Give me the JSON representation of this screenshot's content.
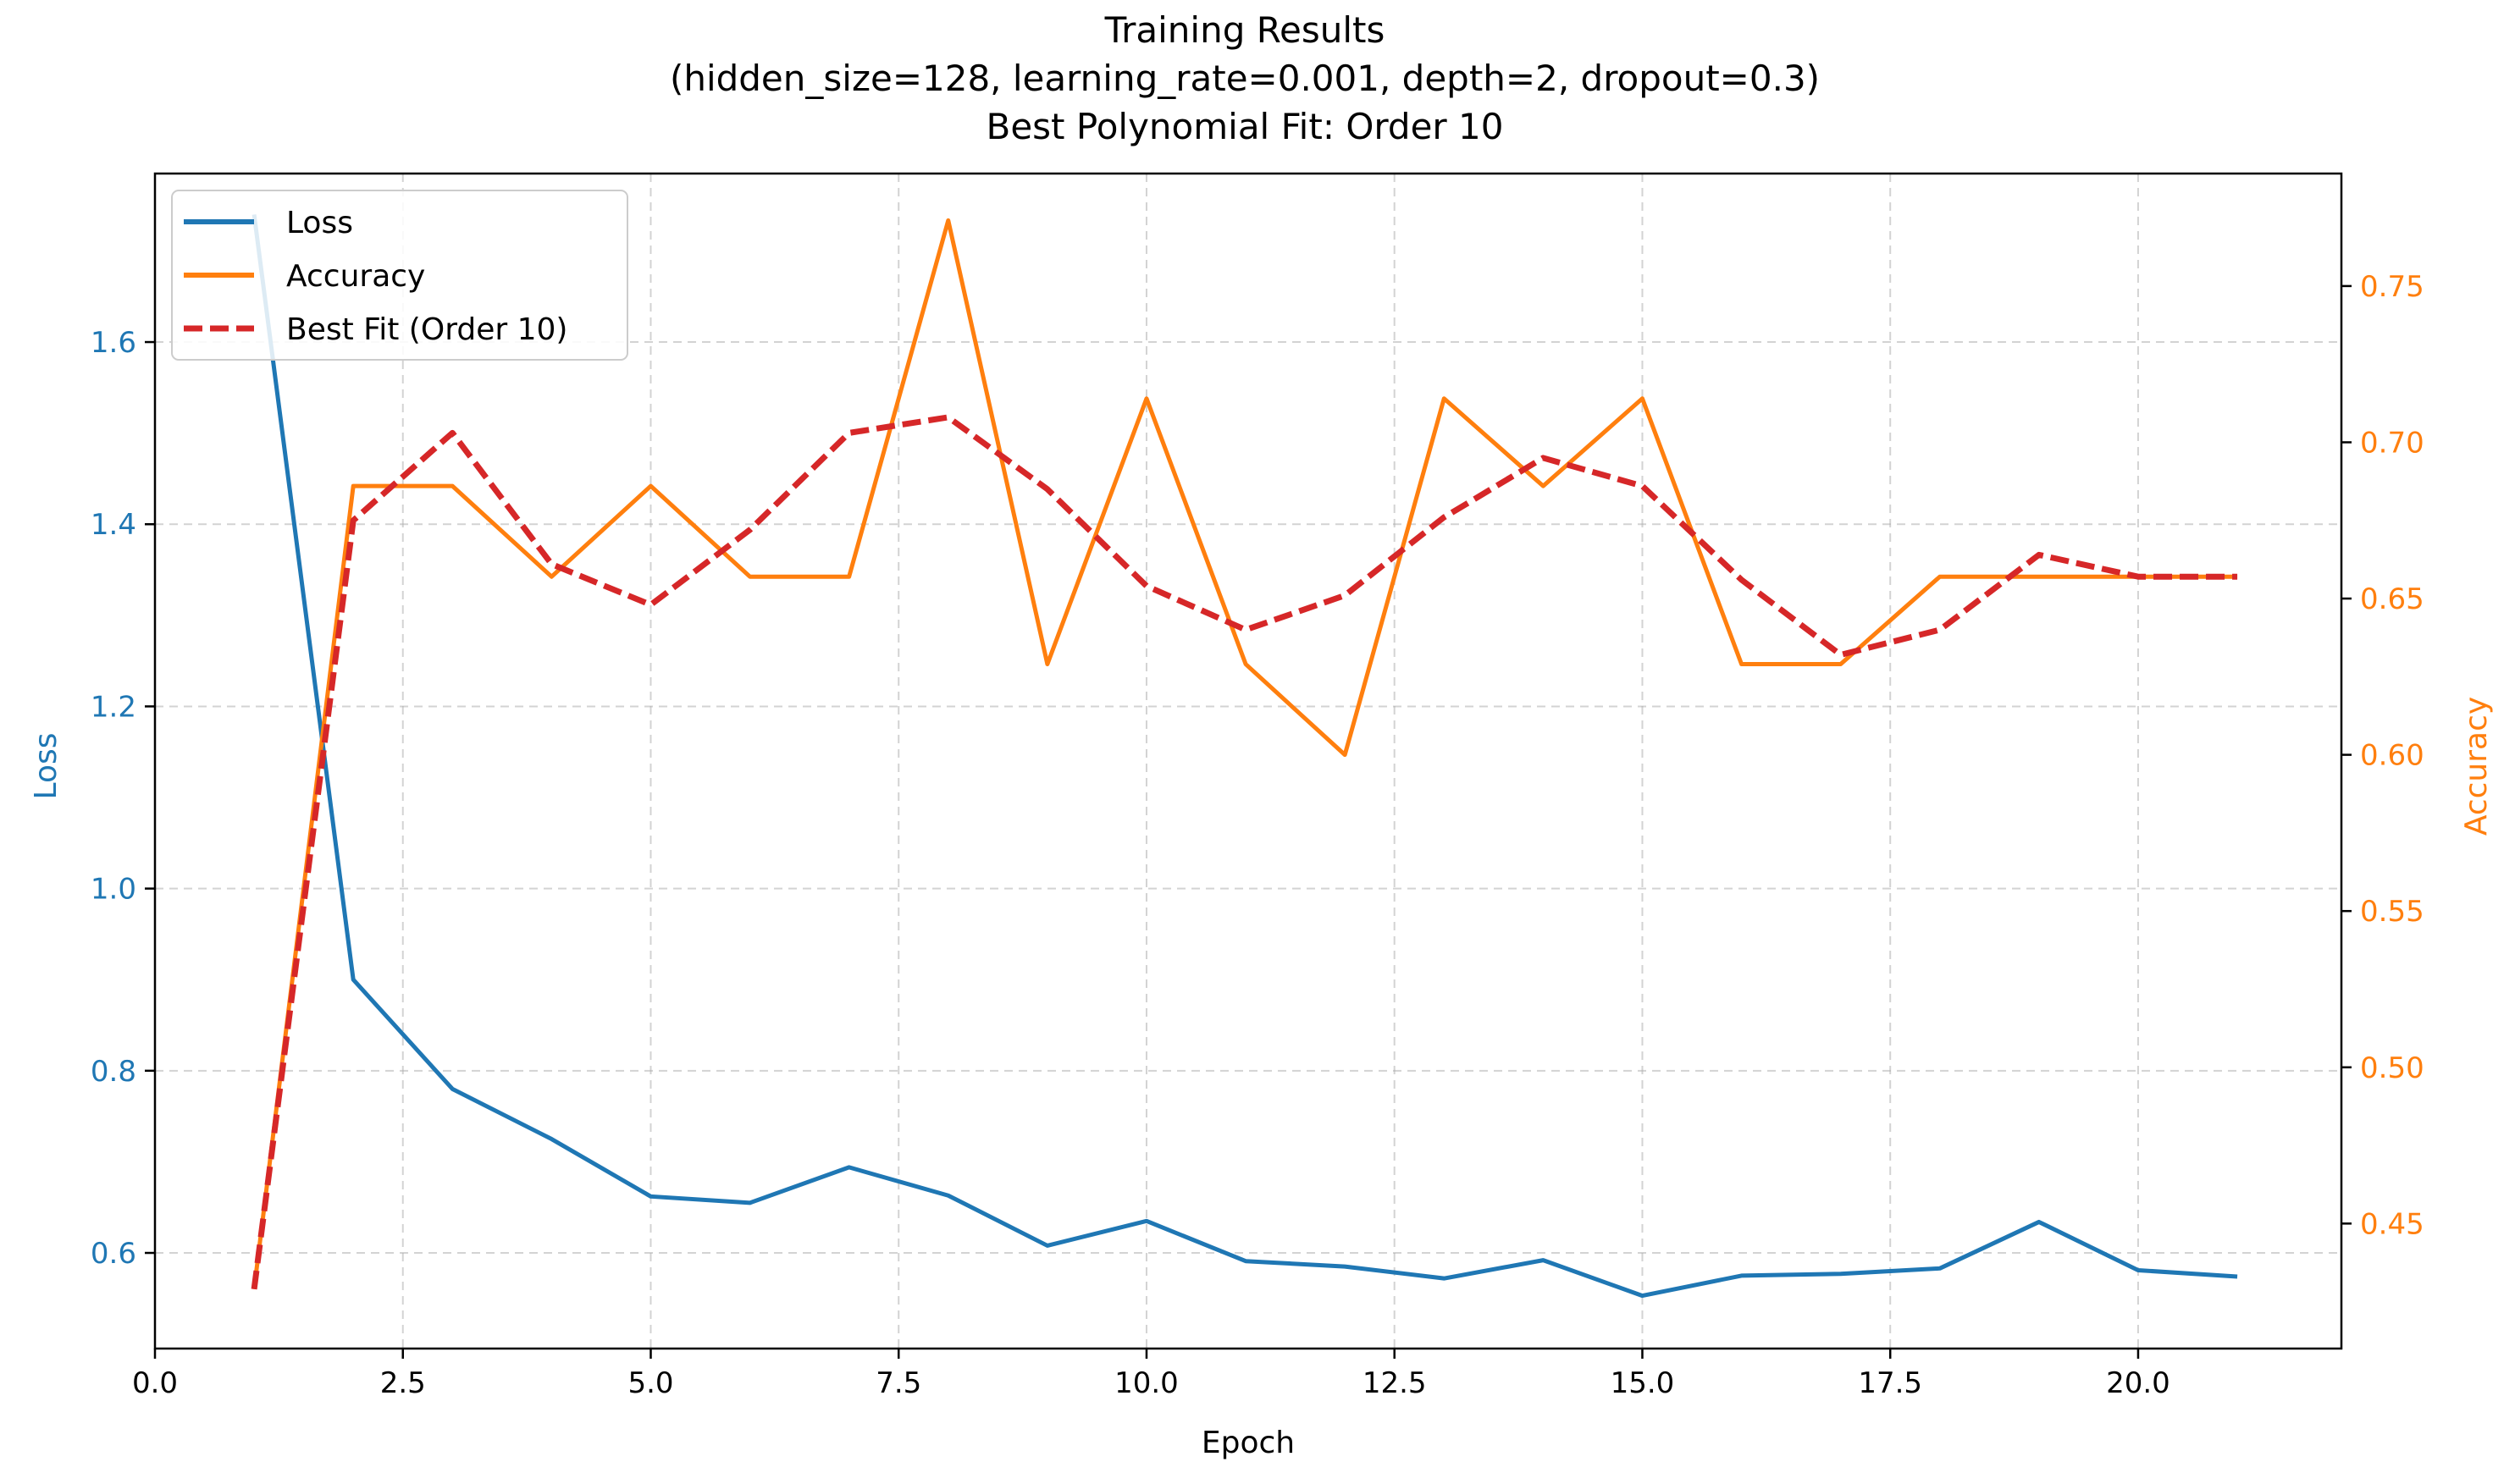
{
  "chart_data": {
    "type": "line",
    "title": "Training Results",
    "subtitle": "(hidden_size=128, learning_rate=0.001, depth=2, dropout=0.3)",
    "subtitle2": "Best Polynomial Fit: Order 10",
    "xlabel": "Epoch",
    "ylabel_left": "Loss",
    "ylabel_right": "Accuracy",
    "xlim": [
      0,
      22.05
    ],
    "ylim_left": [
      0.495,
      1.785
    ],
    "ylim_right": [
      0.41,
      0.786
    ],
    "x_ticks": [
      0,
      2.5,
      5,
      7.5,
      10,
      12.5,
      15,
      17.5,
      20
    ],
    "x_tick_labels": [
      "0.0",
      "2.5",
      "5.0",
      "7.5",
      "10.0",
      "12.5",
      "15.0",
      "17.5",
      "20.0"
    ],
    "y_left_ticks": [
      0.6,
      0.8,
      1.0,
      1.2,
      1.4,
      1.6
    ],
    "y_left_tick_labels": [
      "0.6",
      "0.8",
      "1.0",
      "1.2",
      "1.4",
      "1.6"
    ],
    "y_right_ticks": [
      0.45,
      0.5,
      0.55,
      0.6,
      0.65,
      0.7,
      0.75
    ],
    "y_right_tick_labels": [
      "0.45",
      "0.50",
      "0.55",
      "0.60",
      "0.65",
      "0.70",
      "0.75"
    ],
    "grid": true,
    "legend_position": "top-left",
    "x": [
      1,
      2,
      3,
      4,
      5,
      6,
      7,
      8,
      9,
      10,
      11,
      12,
      13,
      14,
      15,
      16,
      17,
      18,
      19,
      20,
      21
    ],
    "series": [
      {
        "name": "Loss",
        "axis": "left",
        "color": "#1f77b4",
        "style": "solid",
        "values": [
          1.74,
          0.9,
          0.78,
          0.725,
          0.662,
          0.655,
          0.694,
          0.663,
          0.608,
          0.635,
          0.591,
          0.585,
          0.572,
          0.592,
          0.553,
          0.575,
          0.577,
          0.583,
          0.634,
          0.581,
          0.574
        ]
      },
      {
        "name": "Accuracy",
        "axis": "right",
        "color": "#ff7f0e",
        "style": "solid",
        "values": [
          0.429,
          0.686,
          0.686,
          0.657,
          0.686,
          0.657,
          0.657,
          0.771,
          0.629,
          0.714,
          0.629,
          0.6,
          0.714,
          0.686,
          0.714,
          0.629,
          0.629,
          0.657,
          0.657,
          0.657,
          0.657
        ]
      },
      {
        "name": "Best Fit (Order 10)",
        "axis": "right",
        "color": "#d62728",
        "style": "dashed",
        "values": [
          0.429,
          0.675,
          0.703,
          0.661,
          0.648,
          0.672,
          0.703,
          0.708,
          0.685,
          0.654,
          0.64,
          0.651,
          0.676,
          0.695,
          0.686,
          0.656,
          0.632,
          0.64,
          0.664,
          0.657,
          0.657
        ]
      }
    ]
  }
}
